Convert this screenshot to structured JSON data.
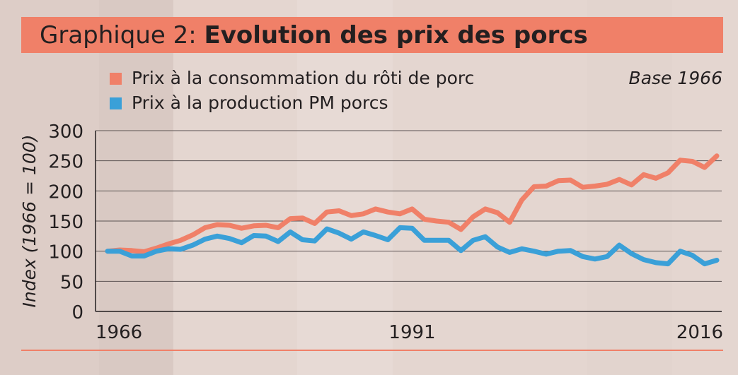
{
  "title": {
    "prefix": "Graphique 2:",
    "main": "Evolution des prix des porcs"
  },
  "base_note": "Base 1966",
  "colors": {
    "consumption": "#f08068",
    "production": "#3aa0d8",
    "title_bar": "#f08068"
  },
  "chart_data": {
    "type": "line",
    "ylabel": "Index (1966 = 100)",
    "xlabel": "",
    "ylim": [
      0,
      300
    ],
    "xlim": [
      1966,
      2016
    ],
    "yticks": [
      0,
      50,
      100,
      150,
      200,
      250,
      300
    ],
    "xticks": [
      1966,
      1991,
      2016
    ],
    "grid": true,
    "legend_position": "top-left",
    "x": [
      1966,
      1967,
      1968,
      1969,
      1970,
      1971,
      1972,
      1973,
      1974,
      1975,
      1976,
      1977,
      1978,
      1979,
      1980,
      1981,
      1982,
      1983,
      1984,
      1985,
      1986,
      1987,
      1988,
      1989,
      1990,
      1991,
      1992,
      1993,
      1994,
      1995,
      1996,
      1997,
      1998,
      1999,
      2000,
      2001,
      2002,
      2003,
      2004,
      2005,
      2006,
      2007,
      2008,
      2009,
      2010,
      2011,
      2012,
      2013,
      2014,
      2015,
      2016
    ],
    "series": [
      {
        "name": "Prix à la consommation du rôti de porc",
        "color": "#f08068",
        "values": [
          100,
          102,
          101,
          99,
          105,
          112,
          118,
          127,
          139,
          144,
          143,
          138,
          142,
          143,
          139,
          154,
          155,
          146,
          165,
          167,
          159,
          162,
          170,
          165,
          162,
          170,
          153,
          150,
          148,
          136,
          157,
          170,
          164,
          148,
          185,
          207,
          208,
          217,
          218,
          206,
          208,
          211,
          219,
          210,
          227,
          221,
          230,
          251,
          249,
          239,
          258
        ]
      },
      {
        "name": "Prix à la production PM porcs",
        "color": "#3aa0d8",
        "values": [
          100,
          100,
          92,
          92,
          100,
          104,
          103,
          110,
          120,
          125,
          121,
          114,
          126,
          125,
          116,
          132,
          119,
          117,
          137,
          130,
          120,
          132,
          126,
          119,
          139,
          138,
          118,
          118,
          118,
          101,
          118,
          124,
          107,
          98,
          104,
          100,
          95,
          100,
          101,
          91,
          87,
          91,
          110,
          96,
          86,
          81,
          79,
          100,
          93,
          79,
          85
        ]
      }
    ]
  }
}
